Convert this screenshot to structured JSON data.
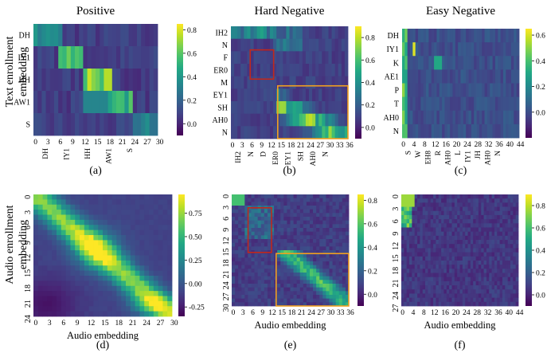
{
  "figure": {
    "row_labels": [
      "Text enrollment\nembedding",
      "Audio enrollment\nembedding"
    ],
    "colormap": "viridis",
    "colormap_stops": [
      "#440154",
      "#482475",
      "#414487",
      "#355f8d",
      "#2a788e",
      "#21918c",
      "#22a884",
      "#44bf70",
      "#7ad151",
      "#bddf26",
      "#fde725"
    ]
  },
  "chart_data": [
    {
      "type": "heatmap",
      "panel": "(a)",
      "title": "Positive",
      "rows": [
        "DH",
        "IY1",
        "HH",
        "AW1",
        "S"
      ],
      "xticks": [
        "DH",
        "IY1",
        "HH",
        "AW1",
        "S"
      ],
      "xnums": [
        "0",
        "3",
        "6",
        "9",
        "12",
        "15",
        "18",
        "21",
        "24",
        "27",
        "30"
      ],
      "xlim": [
        0,
        30
      ],
      "colorbar": [
        "0.8",
        "0.6",
        "0.4",
        "0.2",
        "0.0"
      ],
      "vrange": [
        -0.1,
        0.85
      ],
      "boxes": []
    },
    {
      "type": "heatmap",
      "panel": "(b)",
      "title": "Hard Negative",
      "rows": [
        "IH2",
        "N",
        "F",
        "ER0",
        "M",
        "EY1",
        "SH",
        "AH0",
        "N"
      ],
      "xticks": [
        "IH2",
        "N",
        "D",
        "ER0",
        "EY1",
        "SH",
        "AH0",
        "N"
      ],
      "xnums": [
        "0",
        "3",
        "6",
        "9",
        "12",
        "15",
        "18",
        "21",
        "24",
        "27",
        "30",
        "33",
        "36"
      ],
      "xlim": [
        0,
        36
      ],
      "colorbar": [
        "0.8",
        "0.6",
        "0.4",
        "0.2",
        "0.0"
      ],
      "vrange": [
        -0.1,
        0.9
      ],
      "boxes": [
        "red",
        "orange"
      ]
    },
    {
      "type": "heatmap",
      "panel": "(c)",
      "title": "Easy Negative",
      "rows": [
        "DH",
        "IY1",
        "K",
        "AE1",
        "P",
        "T",
        "AH0",
        "N"
      ],
      "xticks": [
        "S",
        "W",
        "EH8",
        "R",
        "AH0",
        "L",
        "IY1",
        "JH",
        "AH0",
        "N"
      ],
      "xnums": [
        "0",
        "4",
        "8",
        "12",
        "16",
        "20",
        "24",
        "28",
        "32",
        "36",
        "40",
        "44"
      ],
      "xlim": [
        0,
        44
      ],
      "colorbar": [
        "0.6",
        "0.4",
        "0.2",
        "0.0"
      ],
      "vrange": [
        -0.2,
        0.65
      ],
      "boxes": []
    },
    {
      "type": "heatmap",
      "panel": "(d)",
      "title": "",
      "xlabel": "Audio embedding",
      "yticks": [
        "0",
        "3",
        "6",
        "9",
        "12",
        "15",
        "18",
        "21",
        "24"
      ],
      "xnums": [
        "0",
        "3",
        "6",
        "9",
        "12",
        "15",
        "18",
        "21",
        "24",
        "27",
        "30"
      ],
      "colorbar": [
        "0.75",
        "0.50",
        "0.25",
        "0.00",
        "-0.25"
      ],
      "vrange": [
        -0.35,
        0.95
      ],
      "boxes": []
    },
    {
      "type": "heatmap",
      "panel": "(e)",
      "title": "",
      "xlabel": "Audio embedding",
      "yticks": [
        "0",
        "3",
        "6",
        "9",
        "12",
        "15",
        "18",
        "21",
        "24",
        "27",
        "30"
      ],
      "xnums": [
        "0",
        "3",
        "6",
        "9",
        "12",
        "15",
        "18",
        "21",
        "24",
        "27",
        "30",
        "33",
        "36"
      ],
      "colorbar": [
        "0.8",
        "0.6",
        "0.4",
        "0.2",
        "0.0"
      ],
      "vrange": [
        -0.1,
        0.85
      ],
      "boxes": [
        "red",
        "orange"
      ]
    },
    {
      "type": "heatmap",
      "panel": "(f)",
      "title": "",
      "xlabel": "Audio embedding",
      "yticks": [
        "0",
        "3",
        "6",
        "9",
        "12",
        "15",
        "18",
        "21",
        "24",
        "27"
      ],
      "xnums": [
        "0",
        "4",
        "8",
        "12",
        "16",
        "20",
        "24",
        "28",
        "32",
        "36",
        "40",
        "44"
      ],
      "colorbar": [
        "0.8",
        "0.6",
        "0.4",
        "0.2",
        "0.0"
      ],
      "vrange": [
        -0.1,
        0.9
      ],
      "boxes": []
    }
  ]
}
